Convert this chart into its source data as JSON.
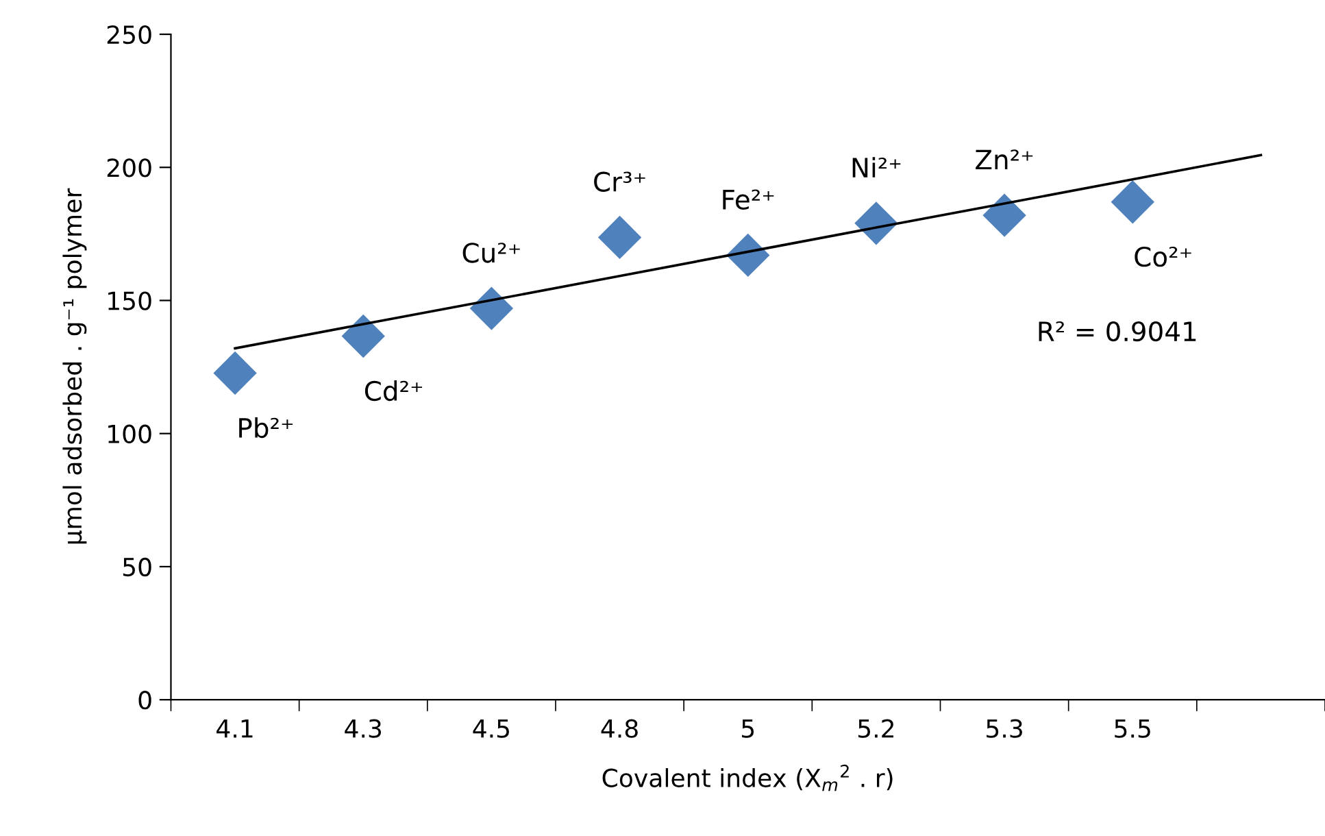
{
  "chart_data": {
    "type": "scatter",
    "xlabel": "Covalent index (X$_{m}$$^{2}$ . r)",
    "ylabel": "µmol adsorbed . g⁻¹ polymer",
    "categories": [
      "4.1",
      "4.3",
      "4.5",
      "4.8",
      "5",
      "5.2",
      "5.3",
      "5.5",
      null
    ],
    "series": [
      {
        "color": "#4f81bd",
        "marker": "diamond",
        "values": [
          122.7,
          136.6,
          147,
          173.7,
          167,
          179,
          182,
          187,
          null
        ]
      },
      {
        "type": "line",
        "color": "#000000",
        "marker": "none",
        "line_style": "solid",
        "values": [
          132.0,
          141.1,
          150.1,
          159.2,
          168.3,
          177.4,
          186.4,
          195.5,
          204.6
        ]
      }
    ],
    "ylim": [
      0,
      250
    ],
    "yticks": [
      0,
      50,
      100,
      150,
      200,
      250
    ],
    "grid": false,
    "legend": false,
    "annotations": [
      {
        "text": "Pb²⁺",
        "x": "4.1",
        "y": 122.7
      },
      {
        "text": "Cd²⁺",
        "x": "4.3",
        "y": 136.6
      },
      {
        "text": "Cu²⁺",
        "x": "4.5",
        "y": 147
      },
      {
        "text": "Cr³⁺",
        "x": "4.8",
        "y": 173.7
      },
      {
        "text": "Fe²⁺",
        "x": "5",
        "y": 167
      },
      {
        "text": "Ni²⁺",
        "x": "5.2",
        "y": 179
      },
      {
        "text": "Zn²⁺",
        "x": "5.3",
        "y": 182
      },
      {
        "text": "Co²⁺",
        "x": "5.5",
        "y": 187
      },
      "R² = 0.9041"
    ]
  }
}
